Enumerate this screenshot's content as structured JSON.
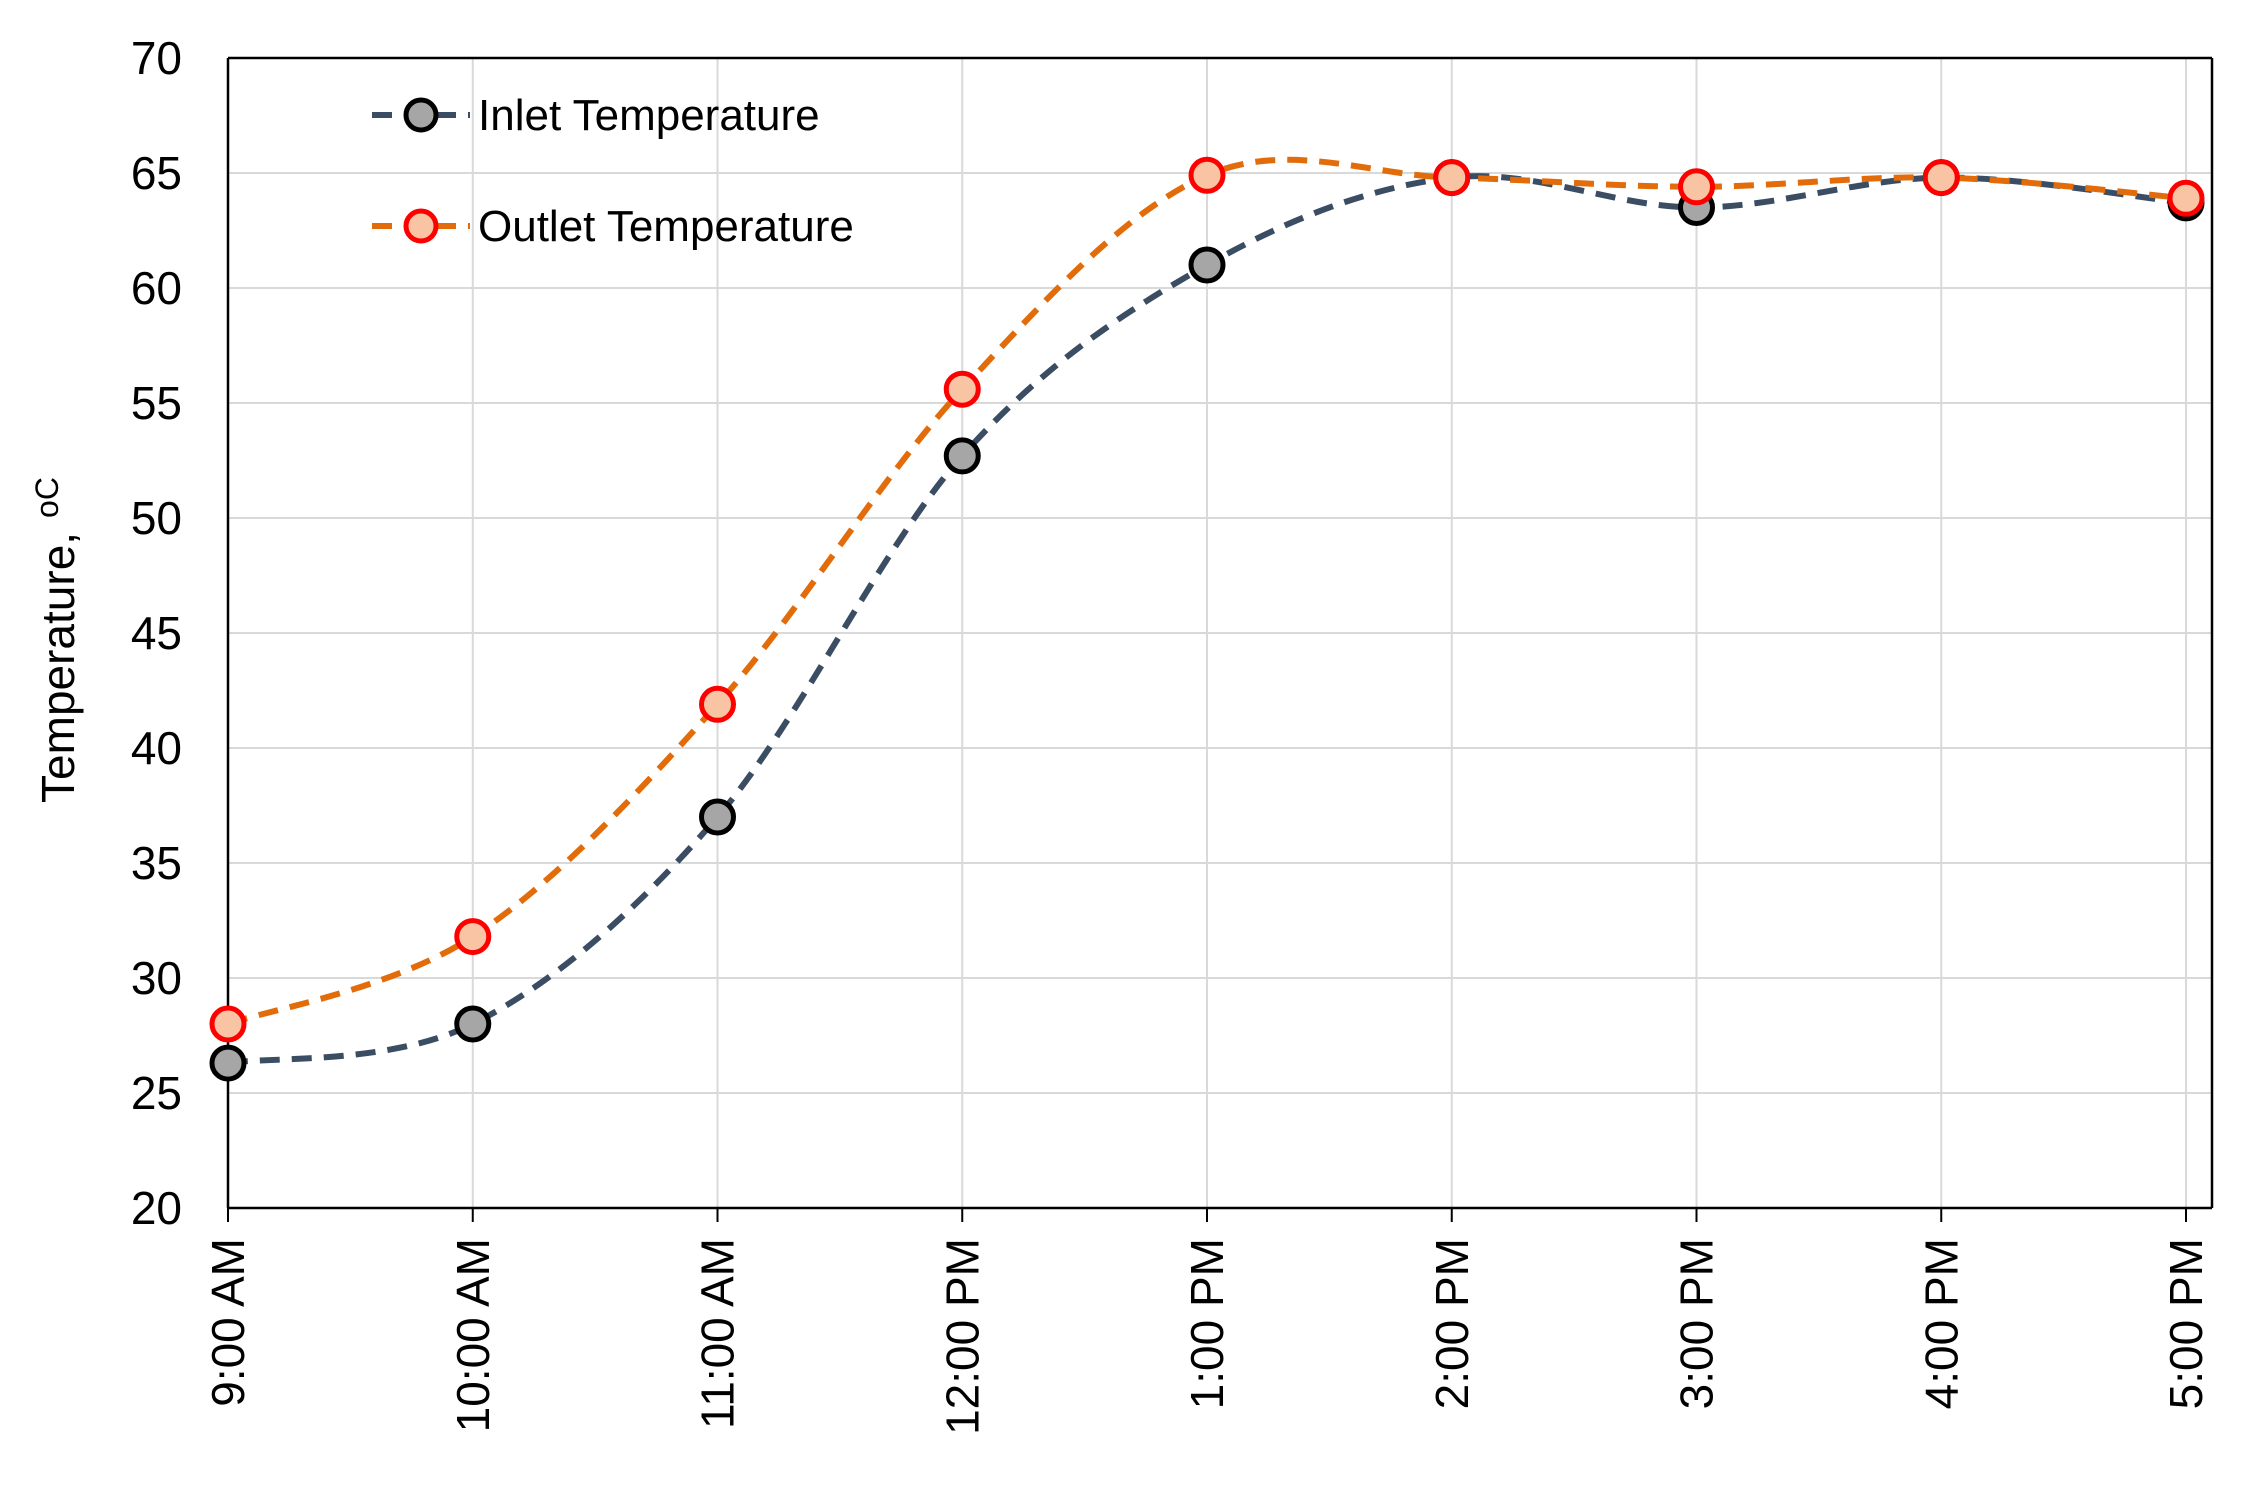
{
  "chart_data": {
    "type": "line",
    "title": "",
    "xlabel": "",
    "ylabel": "Temperature,",
    "ylabel_unit": "oC",
    "categories": [
      "9:00 AM",
      "10:00 AM",
      "11:00 AM",
      "12:00 PM",
      "1:00 PM",
      "2:00 PM",
      "3:00 PM",
      "4:00 PM",
      "5:00 PM"
    ],
    "ylim": [
      20,
      70
    ],
    "yticks": [
      "20",
      "25",
      "30",
      "35",
      "40",
      "45",
      "50",
      "55",
      "60",
      "65",
      "70"
    ],
    "grid": true,
    "smooth": true,
    "line_style": "dashed",
    "legend_position": "top-left",
    "series": [
      {
        "name": "Inlet Temperature",
        "values": [
          26.3,
          28.0,
          37.0,
          52.7,
          61.0,
          64.8,
          63.5,
          64.8,
          63.7
        ],
        "line_color": "#3b4d63",
        "marker_fill": "#a6a6a6",
        "marker_edge": "#000000"
      },
      {
        "name": "Outlet Temperature",
        "values": [
          28.0,
          31.8,
          41.9,
          55.6,
          64.9,
          64.8,
          64.4,
          64.8,
          63.9
        ],
        "line_color": "#e36c0a",
        "marker_fill": "#f8c4a4",
        "marker_edge": "#ff0000"
      }
    ]
  }
}
